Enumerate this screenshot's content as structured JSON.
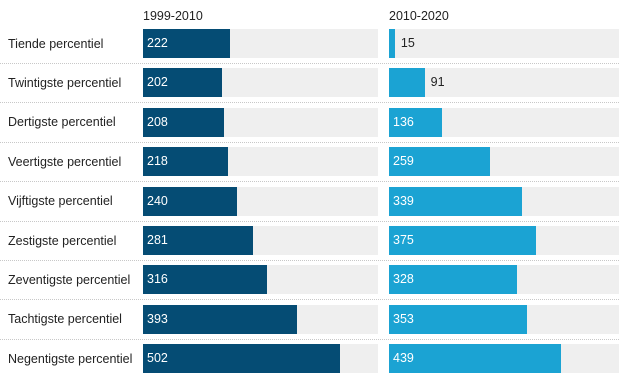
{
  "chart_data": {
    "type": "bar",
    "orientation": "horizontal",
    "categories": [
      "Tiende percentiel",
      "Twintigste percentiel",
      "Dertigste percentiel",
      "Veertigste percentiel",
      "Vijftigste percentiel",
      "Zestigste percentiel",
      "Zeventigste percentiel",
      "Tachtigste percentiel",
      "Negentigste percentiel"
    ],
    "series": [
      {
        "name": "1999-2010",
        "color": "#054c74",
        "values": [
          222,
          202,
          208,
          218,
          240,
          281,
          316,
          393,
          502
        ]
      },
      {
        "name": "2010-2020",
        "color": "#1ba3d3",
        "values": [
          15,
          91,
          136,
          259,
          339,
          375,
          328,
          353,
          439
        ]
      }
    ],
    "xlim": [
      0,
      600
    ],
    "grid": false,
    "legend": "column headers",
    "track_color": "#efefef"
  }
}
